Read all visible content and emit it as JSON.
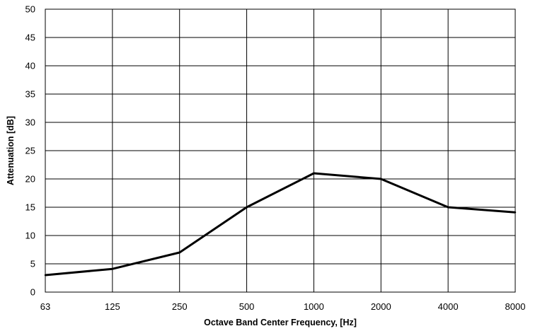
{
  "chart_data": {
    "type": "line",
    "title": "",
    "xlabel": "Octave Band Center Frequency, [Hz]",
    "ylabel": "Attenuation [dB]",
    "categories": [
      "63",
      "125",
      "250",
      "500",
      "1000",
      "2000",
      "4000",
      "8000"
    ],
    "series": [
      {
        "values": [
          3,
          4.1,
          7,
          15,
          21,
          20,
          15,
          14.1
        ],
        "color": "#000000"
      }
    ],
    "ylim": [
      0,
      50
    ],
    "yticks": [
      "0",
      "5",
      "10",
      "15",
      "20",
      "25",
      "30",
      "35",
      "40",
      "45",
      "50"
    ],
    "grid": true,
    "legend": "none"
  }
}
